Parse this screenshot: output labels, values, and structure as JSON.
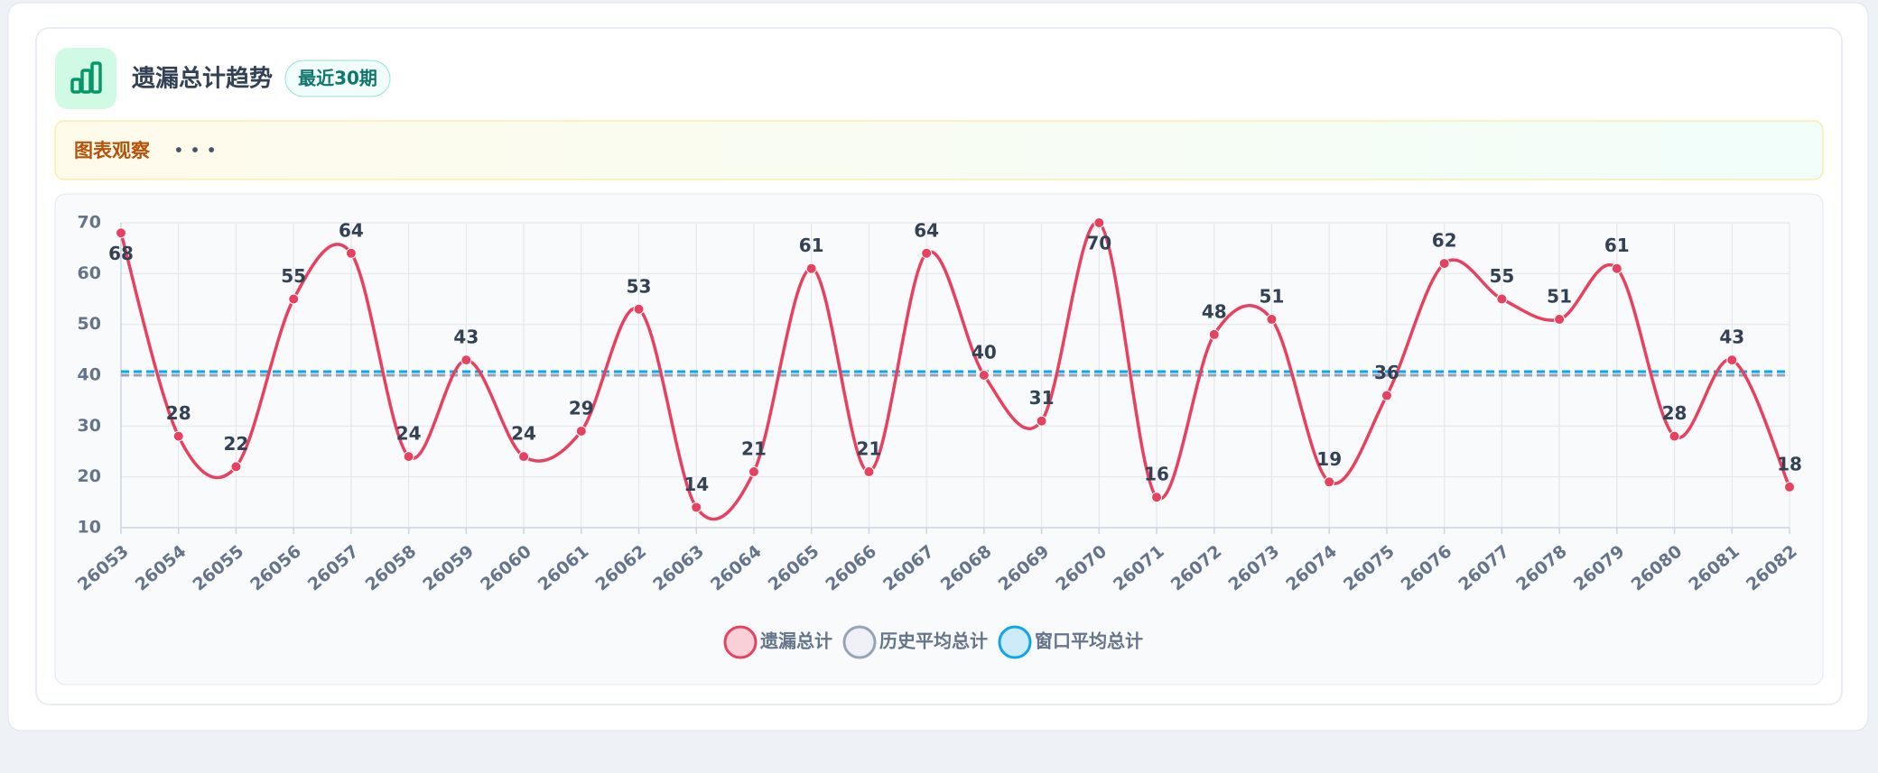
{
  "header": {
    "title": "遗漏总计趋势",
    "badge": "最近30期"
  },
  "observation": {
    "label": "图表观察",
    "dots": "• • •"
  },
  "chart_data": {
    "type": "line",
    "categories": [
      "26053",
      "26054",
      "26055",
      "26056",
      "26057",
      "26058",
      "26059",
      "26060",
      "26061",
      "26062",
      "26063",
      "26064",
      "26065",
      "26066",
      "26067",
      "26068",
      "26069",
      "26070",
      "26071",
      "26072",
      "26073",
      "26074",
      "26075",
      "26076",
      "26077",
      "26078",
      "26079",
      "26080",
      "26081",
      "26082"
    ],
    "series": [
      {
        "name": "遗漏总计",
        "color": "#e8405f",
        "values": [
          68,
          28,
          22,
          55,
          64,
          24,
          43,
          24,
          29,
          53,
          14,
          21,
          61,
          21,
          64,
          40,
          31,
          70,
          16,
          48,
          51,
          19,
          36,
          62,
          55,
          51,
          61,
          28,
          43,
          18
        ]
      },
      {
        "name": "历史平均总计",
        "color": "#94a3b8",
        "values": [
          40,
          40,
          40,
          40,
          40,
          40,
          40,
          40,
          40,
          40,
          40,
          40,
          40,
          40,
          40,
          40,
          40,
          40,
          40,
          40,
          40,
          40,
          40,
          40,
          40,
          40,
          40,
          40,
          40,
          40
        ]
      },
      {
        "name": "窗口平均总计",
        "color": "#0ea5e9",
        "values": [
          40.7,
          40.7,
          40.7,
          40.7,
          40.7,
          40.7,
          40.7,
          40.7,
          40.7,
          40.7,
          40.7,
          40.7,
          40.7,
          40.7,
          40.7,
          40.7,
          40.7,
          40.7,
          40.7,
          40.7,
          40.7,
          40.7,
          40.7,
          40.7,
          40.7,
          40.7,
          40.7,
          40.7,
          40.7,
          40.7
        ]
      }
    ],
    "ylim": [
      10,
      70
    ],
    "yticks": [
      10,
      20,
      30,
      40,
      50,
      60,
      70
    ],
    "grid": true
  }
}
